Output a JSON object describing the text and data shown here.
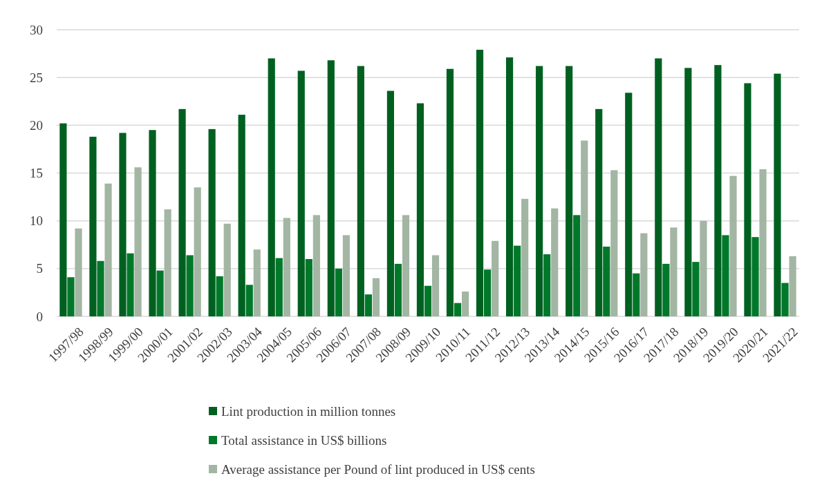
{
  "chart_data": {
    "type": "bar",
    "categories": [
      "1997/98",
      "1998/99",
      "1999/00",
      "2000/01",
      "2001/02",
      "2002/03",
      "2003/04",
      "2004/05",
      "2005/06",
      "2006/07",
      "2007/08",
      "2008/09",
      "2009/10",
      "2010/11",
      "2011/12",
      "2012/13",
      "2013/14",
      "2014/15",
      "2015/16",
      "2016/17",
      "2017/18",
      "2018/19",
      "2019/20",
      "2020/21",
      "2021/22"
    ],
    "series": [
      {
        "name": "Lint production in million tonnes",
        "color": "#006020",
        "values": [
          20.2,
          18.8,
          19.2,
          19.5,
          21.7,
          19.6,
          21.1,
          27.0,
          25.7,
          26.8,
          26.2,
          23.6,
          22.3,
          25.9,
          27.9,
          27.1,
          26.2,
          26.2,
          21.7,
          23.4,
          27.0,
          26.0,
          26.3,
          24.4,
          25.4
        ]
      },
      {
        "name": "Total assistance in US$ billions",
        "color": "#00782a",
        "values": [
          4.1,
          5.8,
          6.6,
          4.8,
          6.4,
          4.2,
          3.3,
          6.1,
          6.0,
          5.0,
          2.3,
          5.5,
          3.2,
          1.4,
          4.9,
          7.4,
          6.5,
          10.6,
          7.3,
          4.5,
          5.5,
          5.7,
          8.5,
          8.3,
          3.5
        ]
      },
      {
        "name": "Average assistance per Pound of lint produced in US$ cents",
        "color": "#a3b5a3",
        "values": [
          9.2,
          13.9,
          15.6,
          11.2,
          13.5,
          9.7,
          7.0,
          10.3,
          10.6,
          8.5,
          4.0,
          10.6,
          6.4,
          2.6,
          7.9,
          12.3,
          11.3,
          18.4,
          15.3,
          8.7,
          9.3,
          10.0,
          14.7,
          15.4,
          6.3
        ]
      }
    ],
    "ylim": [
      0,
      30
    ],
    "yticks": [
      0,
      5,
      10,
      15,
      20,
      25,
      30
    ],
    "grid": "y",
    "legend": "bottom"
  }
}
